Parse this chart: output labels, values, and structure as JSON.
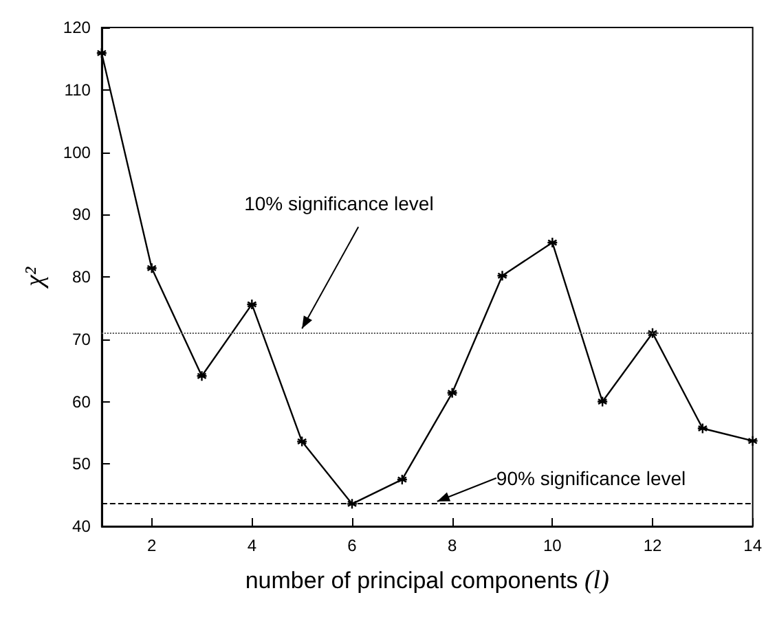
{
  "chart_data": {
    "type": "line",
    "xlabel": "number of principal components (l)",
    "ylabel": "χ²",
    "x": [
      1,
      2,
      3,
      4,
      5,
      6,
      7,
      8,
      9,
      10,
      11,
      12,
      13,
      14
    ],
    "series": [
      {
        "color": "#000000",
        "values": [
          115.9,
          81.4,
          64.1,
          75.6,
          53.6,
          43.6,
          47.5,
          61.4,
          80.2,
          85.5,
          60.0,
          71.0,
          55.7,
          53.7
        ]
      }
    ],
    "xlim": [
      1,
      14
    ],
    "xticks": [
      2,
      4,
      6,
      8,
      10,
      12,
      14
    ],
    "ylim": [
      40,
      120
    ],
    "yticks": [
      40,
      50,
      60,
      70,
      80,
      90,
      100,
      110,
      120
    ],
    "marker": "cross",
    "line_style": "solid",
    "grid": false,
    "ref_lines": [
      {
        "axis": "y",
        "value": 71.1,
        "color": "#555555",
        "line_style": "dotted"
      },
      {
        "axis": "y",
        "value": 43.8,
        "color": "#000000",
        "line_style": "dashed"
      }
    ],
    "annotations": [
      {
        "text": "10% significance level",
        "x": 5,
        "y": 71.7
      },
      {
        "text": "90% significance level",
        "x": 7.7,
        "y": 44
      }
    ]
  }
}
